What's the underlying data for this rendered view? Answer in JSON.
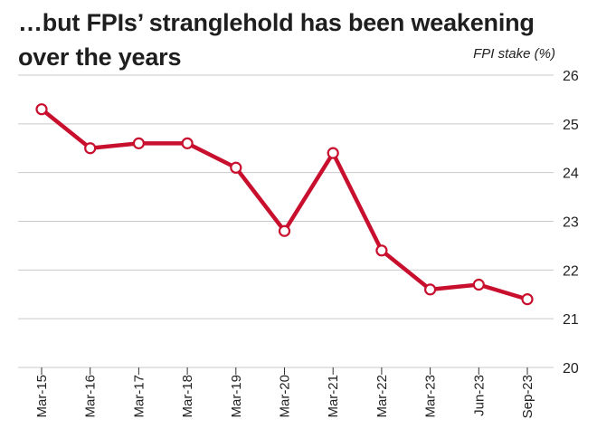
{
  "chart_data": {
    "type": "line",
    "title": "…but FPIs’ stranglehold has been weakening over the years",
    "ylabel": "FPI stake (%)",
    "categories": [
      "Mar-15",
      "Mar-16",
      "Mar-17",
      "Mar-18",
      "Mar-19",
      "Mar-20",
      "Mar-21",
      "Mar-22",
      "Mar-23",
      "Jun-23",
      "Sep-23"
    ],
    "series": [
      {
        "values": [
          25.3,
          24.5,
          24.6,
          24.6,
          24.1,
          22.8,
          24.4,
          22.4,
          21.6,
          21.7,
          21.4
        ]
      }
    ],
    "ylim": [
      20,
      26
    ],
    "yticks": [
      20,
      21,
      22,
      23,
      24,
      25,
      26
    ],
    "y_axis_position": "right",
    "grid": true,
    "legend": "none",
    "colors": {
      "line": "#c8102e",
      "marker_fill": "#ffffff",
      "grid": "#c9c9c9",
      "text": "#222222"
    }
  }
}
